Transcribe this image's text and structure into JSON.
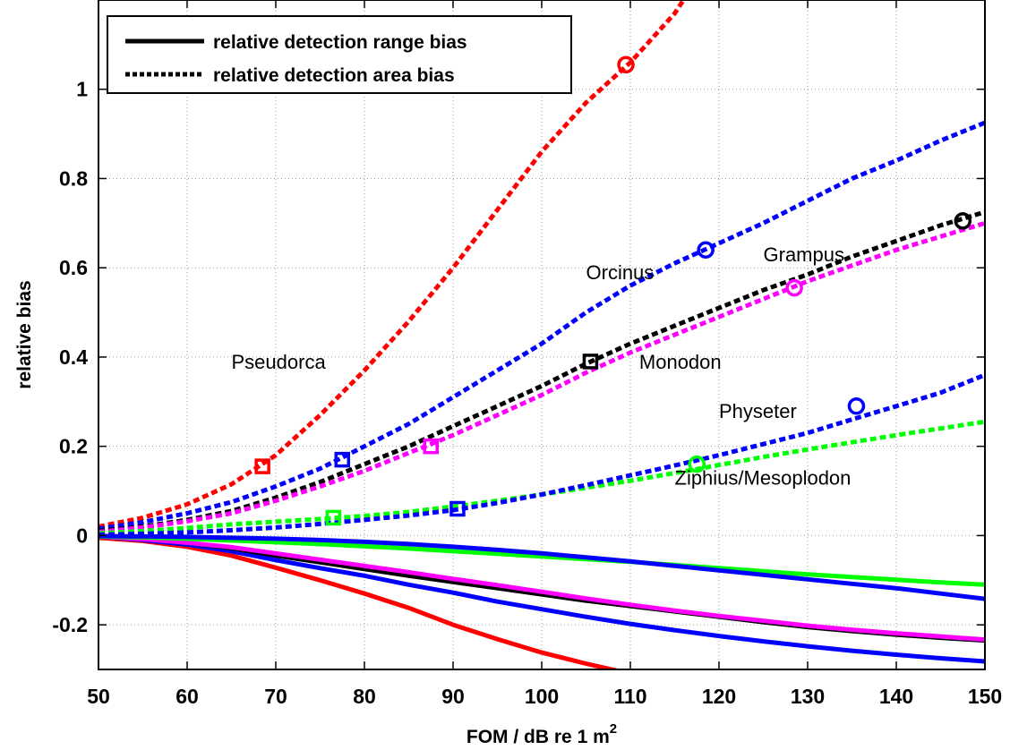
{
  "chart_data": {
    "type": "line",
    "xlabel": "FOM / dB re 1 m",
    "xlabel_superscript": "2",
    "ylabel": "relative bias",
    "xlim": [
      50,
      150
    ],
    "ylim": [
      -0.3,
      1.2
    ],
    "xticks": [
      50,
      60,
      70,
      80,
      90,
      100,
      110,
      120,
      130,
      140,
      150
    ],
    "yticks": [
      -0.2,
      0,
      0.2,
      0.4,
      0.6,
      0.8,
      1
    ],
    "ytick_labels": [
      "-0.2",
      "0",
      "0.2",
      "0.4",
      "0.6",
      "0.8",
      "1"
    ],
    "grid": true,
    "legend": {
      "placement": "top-left",
      "entries": [
        {
          "label": "relative detection range bias",
          "style": "solid"
        },
        {
          "label": "relative detection area bias",
          "style": "dotted"
        }
      ]
    },
    "annotations": [
      {
        "text": "Pseudorca",
        "x": 65,
        "y": 0.39
      },
      {
        "text": "Orcinus",
        "x": 105,
        "y": 0.59
      },
      {
        "text": "Grampus",
        "x": 125,
        "y": 0.63
      },
      {
        "text": "Monodon",
        "x": 111,
        "y": 0.39
      },
      {
        "text": "Physeter",
        "x": 120,
        "y": 0.28
      },
      {
        "text": "Ziphius/Mesoplodon",
        "x": 115,
        "y": 0.13
      }
    ],
    "series": [
      {
        "kind": "area",
        "color": "#ff0000",
        "points": [
          [
            50,
            0.02
          ],
          [
            55,
            0.04
          ],
          [
            60,
            0.07
          ],
          [
            65,
            0.115
          ],
          [
            70,
            0.18
          ],
          [
            75,
            0.27
          ],
          [
            80,
            0.37
          ],
          [
            85,
            0.48
          ],
          [
            90,
            0.6
          ],
          [
            95,
            0.73
          ],
          [
            100,
            0.86
          ],
          [
            105,
            0.97
          ],
          [
            110,
            1.06
          ],
          [
            115,
            1.17
          ],
          [
            116,
            1.2
          ]
        ],
        "markers": [
          {
            "x": 68.5,
            "y": 0.155,
            "shape": "square"
          },
          {
            "x": 109.5,
            "y": 1.055,
            "shape": "circle"
          }
        ]
      },
      {
        "kind": "area",
        "color": "#0000ff",
        "points": [
          [
            50,
            0.015
          ],
          [
            55,
            0.03
          ],
          [
            60,
            0.05
          ],
          [
            65,
            0.075
          ],
          [
            70,
            0.11
          ],
          [
            75,
            0.15
          ],
          [
            80,
            0.2
          ],
          [
            85,
            0.25
          ],
          [
            90,
            0.31
          ],
          [
            95,
            0.37
          ],
          [
            100,
            0.43
          ],
          [
            105,
            0.5
          ],
          [
            110,
            0.56
          ],
          [
            115,
            0.61
          ],
          [
            120,
            0.655
          ],
          [
            125,
            0.7
          ],
          [
            130,
            0.75
          ],
          [
            135,
            0.8
          ],
          [
            140,
            0.84
          ],
          [
            145,
            0.885
          ],
          [
            150,
            0.925
          ]
        ],
        "markers": [
          {
            "x": 77.5,
            "y": 0.17,
            "shape": "square"
          },
          {
            "x": 118.5,
            "y": 0.64,
            "shape": "circle"
          }
        ]
      },
      {
        "kind": "area",
        "color": "#000000",
        "points": [
          [
            50,
            0.01
          ],
          [
            55,
            0.02
          ],
          [
            60,
            0.035
          ],
          [
            65,
            0.055
          ],
          [
            70,
            0.085
          ],
          [
            75,
            0.12
          ],
          [
            80,
            0.16
          ],
          [
            85,
            0.2
          ],
          [
            90,
            0.245
          ],
          [
            95,
            0.29
          ],
          [
            100,
            0.335
          ],
          [
            105,
            0.385
          ],
          [
            110,
            0.43
          ],
          [
            115,
            0.47
          ],
          [
            120,
            0.51
          ],
          [
            125,
            0.55
          ],
          [
            130,
            0.585
          ],
          [
            135,
            0.625
          ],
          [
            140,
            0.66
          ],
          [
            145,
            0.695
          ],
          [
            150,
            0.725
          ]
        ],
        "markers": [
          {
            "x": 105.5,
            "y": 0.39,
            "shape": "square"
          },
          {
            "x": 147.5,
            "y": 0.705,
            "shape": "circle"
          }
        ]
      },
      {
        "kind": "area",
        "color": "#ff00ff",
        "points": [
          [
            50,
            0.008
          ],
          [
            55,
            0.018
          ],
          [
            60,
            0.032
          ],
          [
            65,
            0.05
          ],
          [
            70,
            0.078
          ],
          [
            75,
            0.11
          ],
          [
            80,
            0.145
          ],
          [
            85,
            0.185
          ],
          [
            90,
            0.225
          ],
          [
            95,
            0.27
          ],
          [
            100,
            0.315
          ],
          [
            105,
            0.365
          ],
          [
            110,
            0.41
          ],
          [
            115,
            0.45
          ],
          [
            120,
            0.49
          ],
          [
            125,
            0.53
          ],
          [
            130,
            0.57
          ],
          [
            135,
            0.605
          ],
          [
            140,
            0.64
          ],
          [
            145,
            0.67
          ],
          [
            150,
            0.7
          ]
        ],
        "markers": [
          {
            "x": 87.5,
            "y": 0.2,
            "shape": "square"
          },
          {
            "x": 128.5,
            "y": 0.555,
            "shape": "circle"
          }
        ]
      },
      {
        "kind": "area",
        "color": "#00ff00",
        "points": [
          [
            50,
            0.005
          ],
          [
            55,
            0.01
          ],
          [
            60,
            0.017
          ],
          [
            65,
            0.025
          ],
          [
            70,
            0.031
          ],
          [
            75,
            0.037
          ],
          [
            80,
            0.044
          ],
          [
            85,
            0.053
          ],
          [
            90,
            0.065
          ],
          [
            95,
            0.078
          ],
          [
            100,
            0.092
          ],
          [
            105,
            0.107
          ],
          [
            110,
            0.123
          ],
          [
            115,
            0.14
          ],
          [
            120,
            0.158
          ],
          [
            125,
            0.176
          ],
          [
            130,
            0.193
          ],
          [
            135,
            0.209
          ],
          [
            140,
            0.225
          ],
          [
            145,
            0.24
          ],
          [
            150,
            0.255
          ]
        ],
        "markers": [
          {
            "x": 76.5,
            "y": 0.04,
            "shape": "square"
          },
          {
            "x": 117.5,
            "y": 0.16,
            "shape": "circle"
          }
        ]
      },
      {
        "kind": "area",
        "color": "#0000ff",
        "points": [
          [
            50,
            0.002
          ],
          [
            55,
            0.004
          ],
          [
            60,
            0.007
          ],
          [
            65,
            0.012
          ],
          [
            70,
            0.018
          ],
          [
            75,
            0.026
          ],
          [
            80,
            0.035
          ],
          [
            85,
            0.045
          ],
          [
            90,
            0.057
          ],
          [
            95,
            0.073
          ],
          [
            100,
            0.092
          ],
          [
            105,
            0.113
          ],
          [
            110,
            0.135
          ],
          [
            115,
            0.157
          ],
          [
            120,
            0.18
          ],
          [
            125,
            0.205
          ],
          [
            130,
            0.23
          ],
          [
            135,
            0.26
          ],
          [
            140,
            0.29
          ],
          [
            145,
            0.32
          ],
          [
            150,
            0.36
          ]
        ],
        "markers": [
          {
            "x": 90.5,
            "y": 0.06,
            "shape": "square"
          },
          {
            "x": 135.5,
            "y": 0.29,
            "shape": "circle"
          }
        ]
      },
      {
        "kind": "range",
        "color": "#ff0000",
        "points": [
          [
            50,
            -0.005
          ],
          [
            55,
            -0.012
          ],
          [
            60,
            -0.025
          ],
          [
            65,
            -0.045
          ],
          [
            70,
            -0.072
          ],
          [
            75,
            -0.1
          ],
          [
            80,
            -0.13
          ],
          [
            85,
            -0.162
          ],
          [
            90,
            -0.2
          ],
          [
            95,
            -0.232
          ],
          [
            100,
            -0.262
          ],
          [
            105,
            -0.287
          ],
          [
            109,
            -0.305
          ]
        ]
      },
      {
        "kind": "range",
        "color": "#0000ff",
        "points": [
          [
            50,
            -0.002
          ],
          [
            55,
            -0.01
          ],
          [
            60,
            -0.02
          ],
          [
            65,
            -0.035
          ],
          [
            70,
            -0.055
          ],
          [
            75,
            -0.073
          ],
          [
            80,
            -0.09
          ],
          [
            85,
            -0.11
          ],
          [
            90,
            -0.128
          ],
          [
            95,
            -0.148
          ],
          [
            100,
            -0.165
          ],
          [
            105,
            -0.182
          ],
          [
            110,
            -0.198
          ],
          [
            115,
            -0.212
          ],
          [
            120,
            -0.225
          ],
          [
            125,
            -0.237
          ],
          [
            130,
            -0.248
          ],
          [
            135,
            -0.258
          ],
          [
            140,
            -0.267
          ],
          [
            145,
            -0.275
          ],
          [
            150,
            -0.282
          ]
        ]
      },
      {
        "kind": "range",
        "color": "#000000",
        "points": [
          [
            50,
            -0.002
          ],
          [
            55,
            -0.008
          ],
          [
            60,
            -0.016
          ],
          [
            65,
            -0.028
          ],
          [
            70,
            -0.045
          ],
          [
            75,
            -0.06
          ],
          [
            80,
            -0.075
          ],
          [
            85,
            -0.09
          ],
          [
            90,
            -0.104
          ],
          [
            95,
            -0.118
          ],
          [
            100,
            -0.132
          ],
          [
            105,
            -0.146
          ],
          [
            110,
            -0.158
          ],
          [
            115,
            -0.17
          ],
          [
            120,
            -0.182
          ],
          [
            125,
            -0.194
          ],
          [
            130,
            -0.205
          ],
          [
            135,
            -0.214
          ],
          [
            140,
            -0.222
          ],
          [
            145,
            -0.229
          ],
          [
            150,
            -0.235
          ]
        ]
      },
      {
        "kind": "range",
        "color": "#ff00ff",
        "points": [
          [
            50,
            -0.002
          ],
          [
            55,
            -0.008
          ],
          [
            60,
            -0.016
          ],
          [
            65,
            -0.026
          ],
          [
            70,
            -0.04
          ],
          [
            75,
            -0.054
          ],
          [
            80,
            -0.068
          ],
          [
            85,
            -0.082
          ],
          [
            90,
            -0.097
          ],
          [
            95,
            -0.111
          ],
          [
            100,
            -0.126
          ],
          [
            105,
            -0.141
          ],
          [
            110,
            -0.155
          ],
          [
            115,
            -0.168
          ],
          [
            120,
            -0.18
          ],
          [
            125,
            -0.191
          ],
          [
            130,
            -0.202
          ],
          [
            135,
            -0.211
          ],
          [
            140,
            -0.219
          ],
          [
            145,
            -0.226
          ],
          [
            150,
            -0.233
          ]
        ]
      },
      {
        "kind": "range",
        "color": "#00ff00",
        "points": [
          [
            50,
            -0.002
          ],
          [
            55,
            -0.004
          ],
          [
            60,
            -0.007
          ],
          [
            65,
            -0.011
          ],
          [
            70,
            -0.015
          ],
          [
            75,
            -0.019
          ],
          [
            80,
            -0.024
          ],
          [
            85,
            -0.029
          ],
          [
            90,
            -0.035
          ],
          [
            95,
            -0.041
          ],
          [
            100,
            -0.047
          ],
          [
            105,
            -0.053
          ],
          [
            110,
            -0.059
          ],
          [
            115,
            -0.066
          ],
          [
            120,
            -0.073
          ],
          [
            125,
            -0.08
          ],
          [
            130,
            -0.087
          ],
          [
            135,
            -0.093
          ],
          [
            140,
            -0.099
          ],
          [
            145,
            -0.105
          ],
          [
            150,
            -0.11
          ]
        ]
      },
      {
        "kind": "range",
        "color": "#0000ff",
        "points": [
          [
            50,
            -0.001
          ],
          [
            55,
            -0.002
          ],
          [
            60,
            -0.003
          ],
          [
            65,
            -0.005
          ],
          [
            70,
            -0.007
          ],
          [
            75,
            -0.01
          ],
          [
            80,
            -0.014
          ],
          [
            85,
            -0.019
          ],
          [
            90,
            -0.025
          ],
          [
            95,
            -0.032
          ],
          [
            100,
            -0.04
          ],
          [
            105,
            -0.049
          ],
          [
            110,
            -0.058
          ],
          [
            115,
            -0.068
          ],
          [
            120,
            -0.078
          ],
          [
            125,
            -0.088
          ],
          [
            130,
            -0.098
          ],
          [
            135,
            -0.108
          ],
          [
            140,
            -0.118
          ],
          [
            145,
            -0.13
          ],
          [
            150,
            -0.142
          ]
        ]
      }
    ]
  }
}
